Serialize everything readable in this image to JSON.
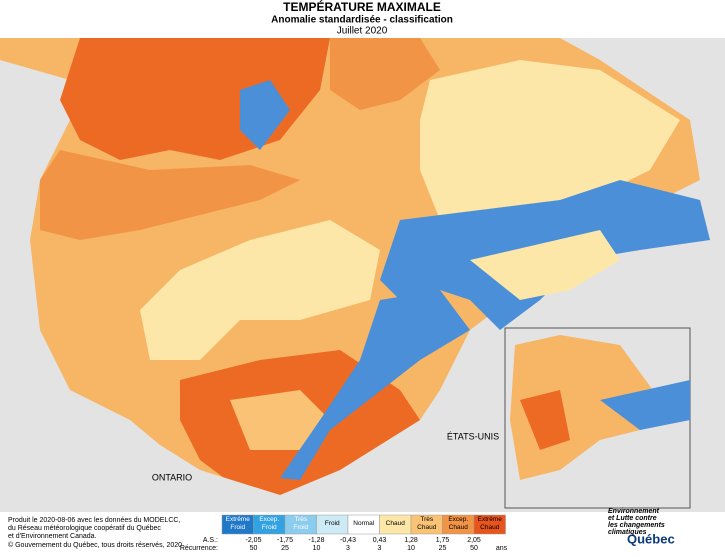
{
  "header": {
    "title": "TEMPÉRATURE MAXIMALE",
    "subtitle": "Anomalie standardisée - classification",
    "date": "Juillet 2020"
  },
  "map_labels": {
    "usa": "ÉTATS-UNIS",
    "ontario": "ONTARIO"
  },
  "legend": {
    "classes": [
      {
        "label": "Extrême Froid",
        "color": "#1f78c8"
      },
      {
        "label": "Excep. Froid",
        "color": "#33a2e2"
      },
      {
        "label": "Très Froid",
        "color": "#8ccdef"
      },
      {
        "label": "Froid",
        "color": "#cdebf5"
      },
      {
        "label": "Normal",
        "color": "#ffffff"
      },
      {
        "label": "Chaud",
        "color": "#fde7a8"
      },
      {
        "label": "Très Chaud",
        "color": "#f9c274"
      },
      {
        "label": "Excep. Chaud",
        "color": "#f29445"
      },
      {
        "label": "Extrême Chaud",
        "color": "#e8541c"
      }
    ],
    "as_label": "A.S.:",
    "as_values": [
      "-2,05",
      "-1,75",
      "-1,28",
      "-0,43",
      "0,43",
      "1,28",
      "1,75",
      "2,05"
    ],
    "recurrence_label": "Récurrence:",
    "recurrence": [
      "50",
      "25",
      "10",
      "3",
      "3",
      "10",
      "25",
      "50"
    ],
    "recurrence_unit": "ans"
  },
  "footer": {
    "credit": [
      "Produit le 2020-08-06 avec les données du MODELCC,",
      "du Réseau météorologique coopératif du Québec",
      "et d'Environnement Canada."
    ],
    "copyright": "© Gouvernement du Québec, tous droits réservés, 2020",
    "ministry": [
      "Environnement",
      "et Lutte contre",
      "les changements",
      "climatiques"
    ],
    "brand": "Québec"
  }
}
